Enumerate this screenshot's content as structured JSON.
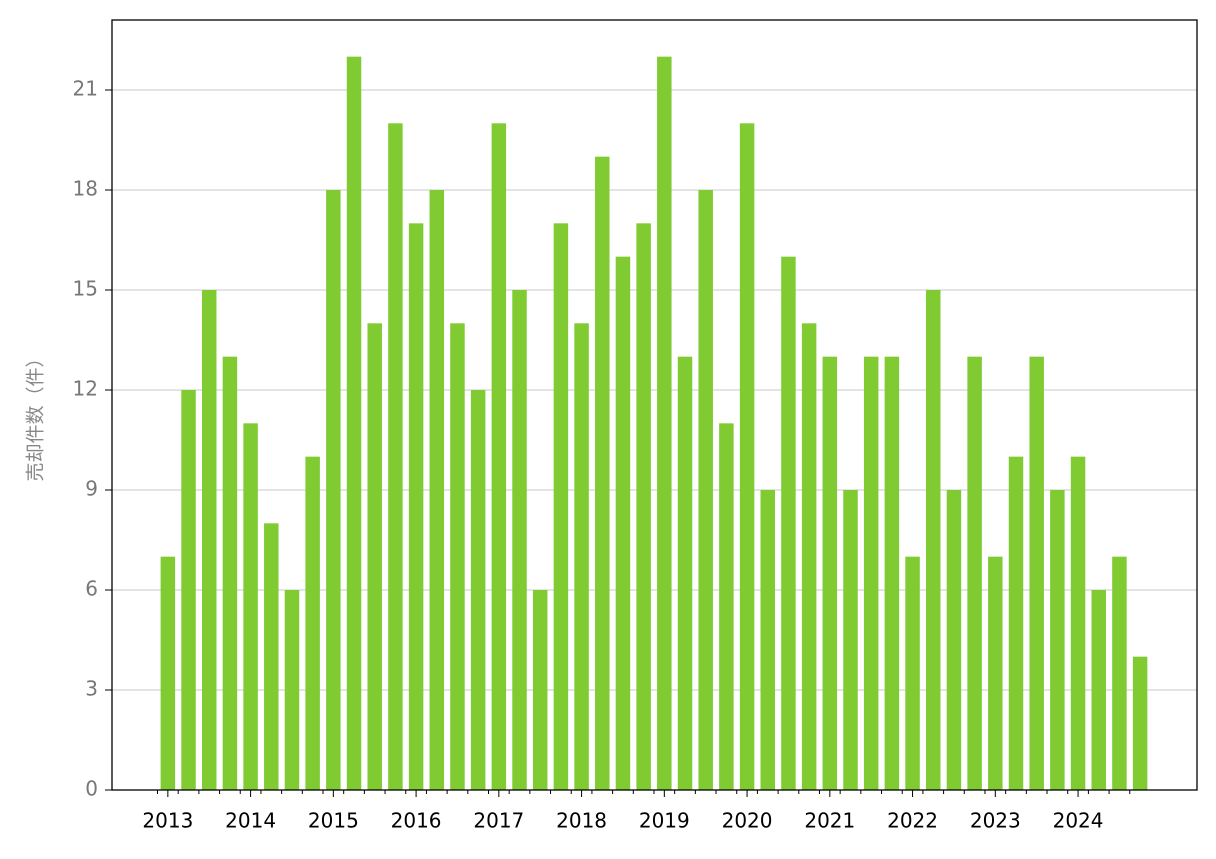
{
  "chart_data": {
    "type": "bar",
    "y_label": "売却件数（件）",
    "categories": [
      "2013",
      null,
      null,
      null,
      "2014",
      null,
      null,
      null,
      "2015",
      null,
      null,
      null,
      "2016",
      null,
      null,
      null,
      "2017",
      null,
      null,
      null,
      "2018",
      null,
      null,
      null,
      "2019",
      null,
      null,
      null,
      "2020",
      null,
      null,
      null,
      "2021",
      null,
      null,
      null,
      "2022",
      null,
      null,
      null,
      "2023",
      null,
      null,
      null,
      "2024",
      null,
      null,
      null
    ],
    "values": [
      7,
      12,
      15,
      13,
      11,
      8,
      6,
      10,
      18,
      22,
      14,
      20,
      17,
      18,
      14,
      12,
      20,
      15,
      6,
      17,
      14,
      19,
      16,
      17,
      22,
      13,
      18,
      11,
      20,
      9,
      16,
      14,
      13,
      9,
      13,
      13,
      7,
      15,
      9,
      13,
      7,
      10,
      13,
      9,
      10,
      6,
      7,
      4
    ],
    "color": "#7fcb31",
    "ylim": [
      0,
      23.1
    ],
    "yticks": [
      0,
      3,
      6,
      9,
      12,
      15,
      18,
      21
    ],
    "grid": true
  }
}
